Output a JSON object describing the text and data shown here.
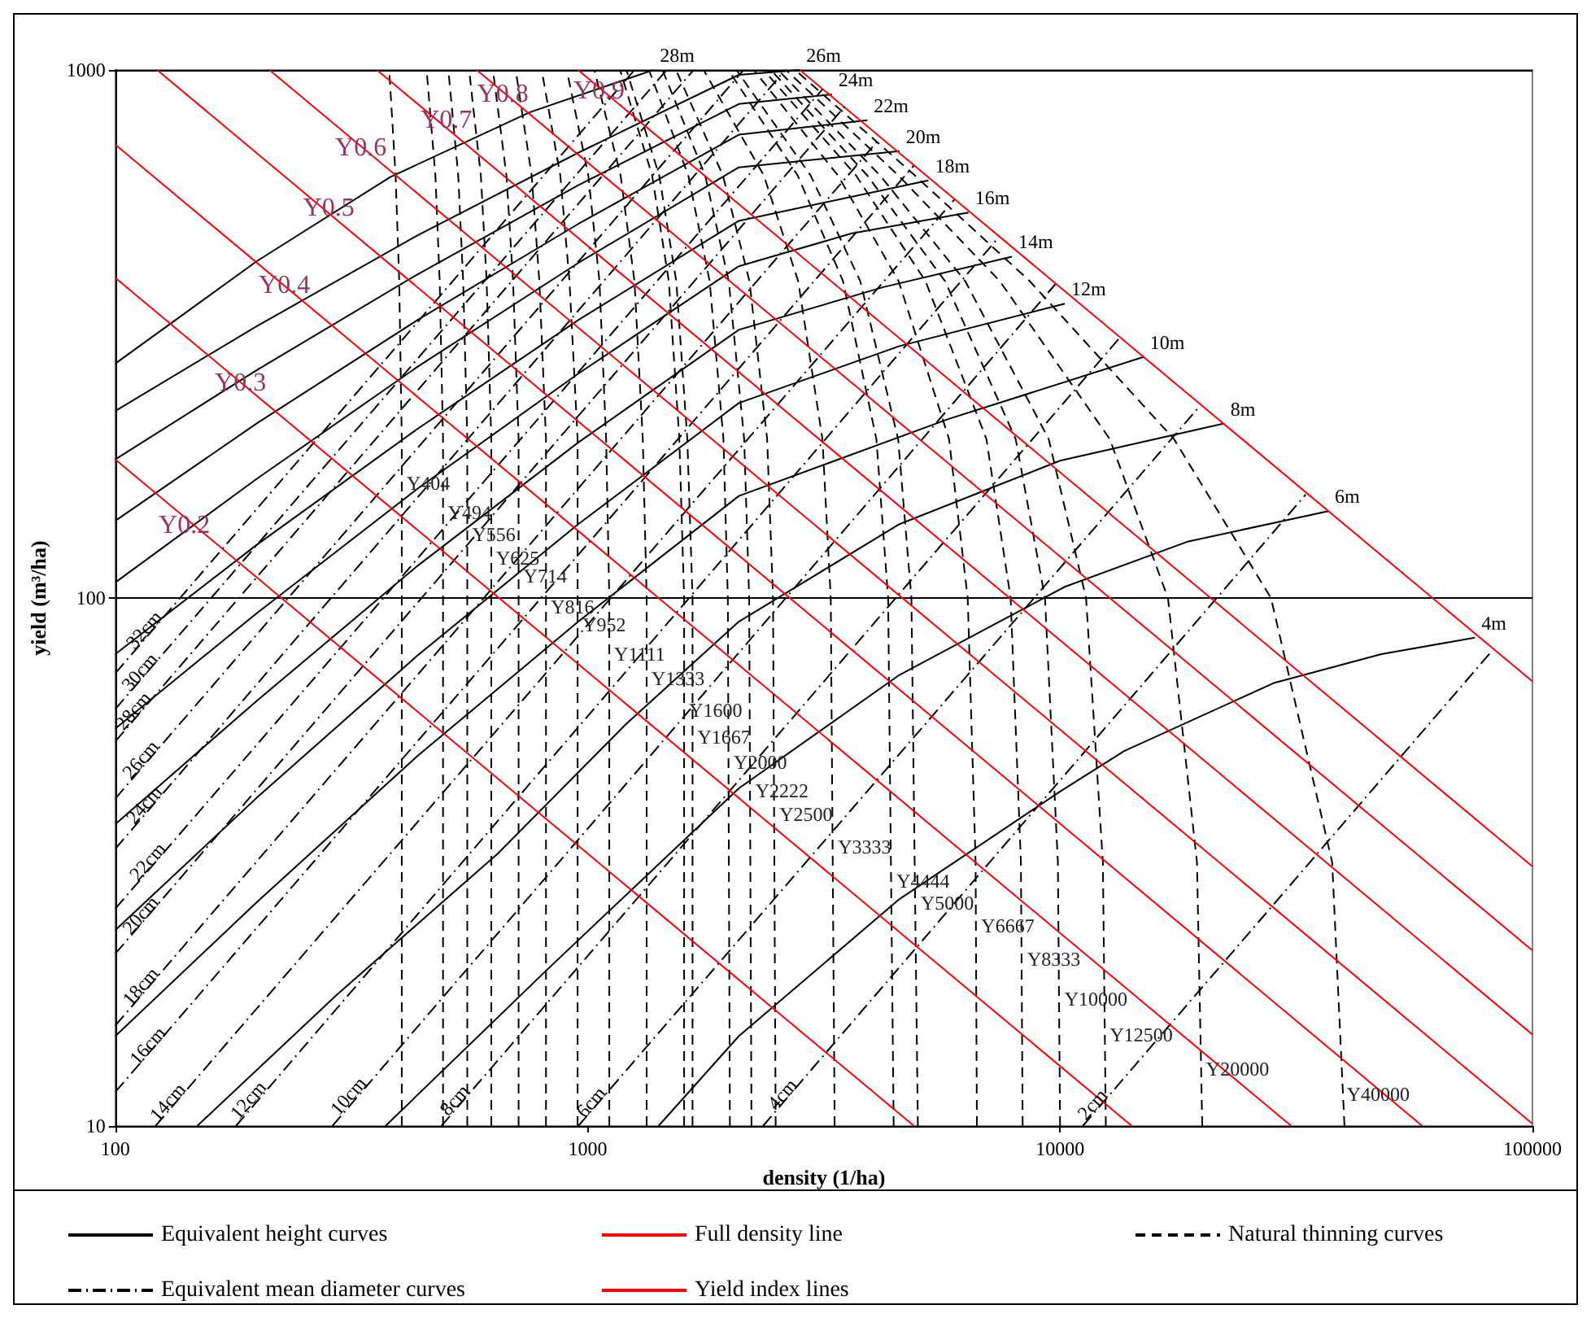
{
  "chart_data": {
    "type": "line",
    "xlabel": "density (1/ha)",
    "ylabel": "yield (m³/ha)",
    "log": "xy",
    "xlim": [
      100,
      100000
    ],
    "ylim": [
      10,
      1000
    ],
    "xticks": [
      100,
      1000,
      10000,
      100000
    ],
    "yticks": [
      10,
      100,
      1000
    ],
    "grid": "y",
    "legend": "bottom",
    "marker": "none",
    "series": [
      {
        "name": "Equivalent height curves",
        "color": "#000000",
        "line_style": "solid",
        "x": [
          100,
          199,
          382,
          755,
          1377
        ],
        "values": [
          278,
          434,
          627,
          832,
          1000
        ]
      },
      {
        "color": "#000000",
        "line_style": "solid",
        "x": [
          100,
          199,
          436,
          955,
          2089,
          2812
        ],
        "values": [
          226,
          327,
          486,
          697,
          979,
          1000
        ]
      },
      {
        "color": "#000000",
        "line_style": "solid",
        "x": [
          100,
          199,
          436,
          955,
          2089,
          3289
        ],
        "values": [
          183,
          270,
          410,
          605,
          862,
          899
        ]
      },
      {
        "color": "#000000",
        "line_style": "solid",
        "x": [
          100,
          199,
          436,
          955,
          2089,
          3908
        ],
        "values": [
          140,
          214,
          336,
          511,
          754,
          803
        ]
      },
      {
        "color": "#000000",
        "line_style": "solid",
        "x": [
          100,
          199,
          436,
          955,
          2089,
          4571
        ],
        "values": [
          107,
          168,
          274,
          431,
          654,
          702
        ]
      },
      {
        "color": "#000000",
        "line_style": "solid",
        "x": [
          100,
          199,
          436,
          955,
          2089,
          5264
        ],
        "values": [
          78.3,
          126,
          209,
          336,
          518,
          618
        ]
      },
      {
        "color": "#000000",
        "line_style": "solid",
        "x": [
          100,
          199,
          436,
          955,
          2089,
          3613,
          6400
        ],
        "values": [
          56.6,
          93.5,
          161,
          266,
          425,
          490,
          537
        ]
      },
      {
        "color": "#000000",
        "line_style": "solid",
        "x": [
          100,
          199,
          436,
          955,
          2089,
          4227,
          7909
        ],
        "values": [
          37.3,
          63.8,
          115,
          197,
          322,
          388,
          443
        ]
      },
      {
        "color": "#000000",
        "line_style": "solid",
        "x": [
          100,
          199,
          436,
          955,
          2089,
          4571,
          10234
        ],
        "values": [
          23.5,
          41.8,
          77.8,
          138,
          234,
          300,
          361
        ]
      },
      {
        "color": "#000000",
        "line_style": "solid",
        "x": [
          100,
          199,
          436,
          955,
          2089,
          5781,
          15020
        ],
        "values": [
          14.8,
          26.5,
          50.2,
          90.2,
          156,
          218,
          286
        ]
      },
      {
        "color": "#000000",
        "line_style": "solid",
        "x": [
          149,
          294,
          645,
          1208,
          2089,
          4571,
          10000,
          22240
        ],
        "values": [
          10,
          17.7,
          32.8,
          57.8,
          90.2,
          138,
          182,
          214
        ]
      },
      {
        "color": "#000000",
        "line_style": "solid",
        "x": [
          373,
          817,
          2089,
          4571,
          10234,
          18700,
          36980
        ],
        "values": [
          10,
          19.7,
          43.6,
          71.5,
          105,
          128,
          146
        ]
      },
      {
        "color": "#000000",
        "line_style": "solid",
        "x": [
          1412,
          2089,
          4571,
          10000,
          13670,
          28340,
          47900,
          75540
        ],
        "values": [
          10,
          14.8,
          26.9,
          43.0,
          51.3,
          69.0,
          78.3,
          84.1
        ]
      },
      {
        "name": "Full density line",
        "color": "#ff0000",
        "line_style": "solid",
        "x": [
          2812,
          100000
        ],
        "values": [
          1000,
          69.5
        ]
      },
      {
        "name": "Natural thinning curves",
        "color": "#000000",
        "line_style": "dashed",
        "x": [
          404,
          404,
          399,
          392,
          380
        ],
        "values": [
          10,
          200,
          398,
          631,
          1000
        ]
      },
      {
        "color": "#000000",
        "line_style": "dashed",
        "x": [
          494,
          494,
          486,
          476,
          456
        ],
        "values": [
          10,
          200,
          398,
          631,
          1000
        ]
      },
      {
        "color": "#000000",
        "line_style": "dashed",
        "x": [
          556,
          556,
          545,
          532,
          507
        ],
        "values": [
          10,
          200,
          398,
          631,
          1000
        ]
      },
      {
        "color": "#000000",
        "line_style": "dashed",
        "x": [
          625,
          625,
          611,
          594,
          561
        ],
        "values": [
          10,
          200,
          398,
          631,
          1000
        ]
      },
      {
        "color": "#000000",
        "line_style": "dashed",
        "x": [
          714,
          714,
          695,
          673,
          630
        ],
        "values": [
          10,
          200,
          398,
          631,
          1000
        ]
      },
      {
        "color": "#000000",
        "line_style": "dashed",
        "x": [
          816,
          816,
          790,
          761,
          704
        ],
        "values": [
          10,
          200,
          398,
          631,
          1000
        ]
      },
      {
        "color": "#000000",
        "line_style": "dashed",
        "x": [
          952,
          952,
          915,
          875,
          799
        ],
        "values": [
          10,
          200,
          398,
          631,
          1000
        ]
      },
      {
        "color": "#000000",
        "line_style": "dashed",
        "x": [
          1111,
          1111,
          1094,
          1059,
          1003,
          903
        ],
        "values": [
          10,
          100,
          200,
          398,
          631,
          1000
        ]
      },
      {
        "color": "#000000",
        "line_style": "dashed",
        "x": [
          1333,
          1333,
          1308,
          1256,
          1174,
          1033
        ],
        "values": [
          10,
          100,
          200,
          398,
          631,
          1000
        ]
      },
      {
        "color": "#000000",
        "line_style": "dashed",
        "x": [
          1600,
          1600,
          1563,
          1485,
          1369,
          1171
        ],
        "values": [
          10,
          100,
          200,
          398,
          631,
          1000
        ]
      },
      {
        "color": "#000000",
        "line_style": "dashed",
        "x": [
          1667,
          1667,
          1625,
          1540,
          1417,
          1208
        ],
        "values": [
          10,
          100,
          200,
          398,
          631,
          1000
        ]
      },
      {
        "color": "#000000",
        "line_style": "dashed",
        "x": [
          2000,
          1980,
          1938,
          1812,
          1633,
          1348
        ],
        "values": [
          10,
          100,
          200,
          398,
          631,
          1000
        ]
      },
      {
        "color": "#000000",
        "line_style": "dashed",
        "x": [
          2222,
          2197,
          2144,
          1989,
          1773,
          1440
        ],
        "values": [
          10,
          100,
          200,
          398,
          631,
          1000
        ]
      },
      {
        "color": "#000000",
        "line_style": "dashed",
        "x": [
          2500,
          2468,
          2398,
          2200,
          1933,
          1538
        ],
        "values": [
          10,
          100,
          200,
          398,
          631,
          1000
        ]
      },
      {
        "color": "#000000",
        "line_style": "dashed",
        "x": [
          3333,
          3270,
          3140,
          2790,
          2360,
          1760
        ],
        "values": [
          10,
          100,
          200,
          398,
          631,
          1000
        ]
      },
      {
        "color": "#000000",
        "line_style": "dashed",
        "x": [
          4444,
          4325,
          4084,
          3472,
          2784,
          1985
        ],
        "values": [
          10,
          100,
          200,
          398,
          631,
          1000
        ]
      },
      {
        "color": "#000000",
        "line_style": "dashed",
        "x": [
          5000,
          4845,
          4541,
          3776,
          2965,
          2065
        ],
        "values": [
          10,
          100,
          200,
          398,
          631,
          1000
        ]
      },
      {
        "color": "#000000",
        "line_style": "dashed",
        "x": [
          6667,
          6625,
          6375,
          5820,
          4553,
          3387,
          2247
        ],
        "values": [
          10,
          31.6,
          100,
          200,
          398,
          631,
          1000
        ]
      },
      {
        "color": "#000000",
        "line_style": "dashed",
        "x": [
          8333,
          8262,
          7858,
          6983,
          5191,
          3700,
          2358
        ],
        "values": [
          10,
          31.6,
          100,
          200,
          398,
          631,
          1000
        ]
      },
      {
        "color": "#000000",
        "line_style": "dashed",
        "x": [
          10000,
          9894,
          9290,
          8054,
          5709,
          3908,
          2443
        ],
        "values": [
          10,
          31.6,
          100,
          200,
          398,
          631,
          1000
        ]
      },
      {
        "color": "#000000",
        "line_style": "dashed",
        "x": [
          12500,
          12320,
          11350,
          9460,
          6300,
          4160,
          2530
        ],
        "values": [
          10,
          31.6,
          100,
          200,
          398,
          631,
          1000
        ]
      },
      {
        "color": "#000000",
        "line_style": "dashed",
        "x": [
          20000,
          19490,
          16920,
          12740,
          7460,
          4550,
          2630
        ],
        "values": [
          10,
          31.6,
          100,
          200,
          398,
          631,
          1000
        ]
      },
      {
        "color": "#000000",
        "line_style": "dashed",
        "x": [
          40000,
          37670,
          27960,
          17420,
          8630,
          4930,
          2750
        ],
        "values": [
          10,
          31.6,
          100,
          200,
          398,
          631,
          1000
        ]
      },
      {
        "name": "Equivalent mean diameter curves",
        "color": "#000000",
        "line_style": "dashdot",
        "x": [
          100,
          1256
        ],
        "values": [
          72.0,
          1000
        ]
      },
      {
        "color": "#000000",
        "line_style": "dashdot",
        "x": [
          100,
          1469
        ],
        "values": [
          61.6,
          1000
        ]
      },
      {
        "color": "#000000",
        "line_style": "dashdot",
        "x": [
          100,
          1675
        ],
        "values": [
          53.5,
          1000
        ]
      },
      {
        "color": "#000000",
        "line_style": "dashdot",
        "x": [
          100,
          2138
        ],
        "values": [
          41.7,
          1000
        ]
      },
      {
        "color": "#000000",
        "line_style": "dashdot",
        "x": [
          100,
          2620
        ],
        "values": [
          33.5,
          1000
        ]
      },
      {
        "color": "#000000",
        "line_style": "dashdot",
        "x": [
          100,
          3140
        ],
        "values": [
          25.8,
          919
        ]
      },
      {
        "color": "#000000",
        "line_style": "dashdot",
        "x": [
          100,
          3501
        ],
        "values": [
          21.2,
          853
        ]
      },
      {
        "color": "#000000",
        "line_style": "dashdot",
        "x": [
          100,
          4160
        ],
        "values": [
          15.5,
          743
        ]
      },
      {
        "color": "#000000",
        "line_style": "dashdot",
        "x": [
          100,
          4900
        ],
        "values": [
          11.6,
          659
        ]
      },
      {
        "color": "#000000",
        "line_style": "dashdot",
        "x": [
          121.6,
          5970
        ],
        "values": [
          10,
          568
        ]
      },
      {
        "color": "#000000",
        "line_style": "dashdot",
        "x": [
          180,
          7430
        ],
        "values": [
          10,
          483
        ]
      },
      {
        "color": "#000000",
        "line_style": "dashdot",
        "x": [
          288,
          9775
        ],
        "values": [
          10,
          393
        ]
      },
      {
        "color": "#000000",
        "line_style": "dashdot",
        "x": [
          490,
          13370
        ],
        "values": [
          10,
          311
        ]
      },
      {
        "color": "#000000",
        "line_style": "dashdot",
        "x": [
          955,
          19770
        ],
        "values": [
          10,
          231
        ]
      },
      {
        "color": "#000000",
        "line_style": "dashdot",
        "x": [
          2350,
          33110
        ],
        "values": [
          10,
          157
        ]
      },
      {
        "color": "#000000",
        "line_style": "dashdot",
        "x": [
          11170,
          82200
        ],
        "values": [
          10,
          79.5
        ]
      },
      {
        "name": "Yield index lines",
        "color": "#ff0000",
        "line_style": "solid",
        "x": [
          100,
          4909
        ],
        "values": [
          183,
          10
        ]
      },
      {
        "color": "#ff0000",
        "line_style": "solid",
        "x": [
          100,
          14190
        ],
        "values": [
          404,
          10
        ]
      },
      {
        "color": "#ff0000",
        "line_style": "solid",
        "x": [
          100,
          30870
        ],
        "values": [
          722,
          10
        ]
      },
      {
        "color": "#ff0000",
        "line_style": "solid",
        "x": [
          122.6,
          58480
        ],
        "values": [
          1000,
          10
        ]
      },
      {
        "color": "#ff0000",
        "line_style": "solid",
        "x": [
          212,
          100000
        ],
        "values": [
          1000,
          10.1
        ]
      },
      {
        "color": "#ff0000",
        "line_style": "solid",
        "x": [
          358,
          100000
        ],
        "values": [
          1000,
          14.9
        ]
      },
      {
        "color": "#ff0000",
        "line_style": "solid",
        "x": [
          582,
          100000
        ],
        "values": [
          1000,
          21.5
        ]
      },
      {
        "color": "#ff0000",
        "line_style": "solid",
        "x": [
          954,
          100000
        ],
        "values": [
          1000,
          31.0
        ]
      }
    ],
    "annotations": [
      {
        "text": "28m",
        "x": 1377,
        "y": 1000
      },
      {
        "text": "26m",
        "x": 2812,
        "y": 1000
      },
      {
        "text": "24m",
        "x": 3289,
        "y": 899
      },
      {
        "text": "22m",
        "x": 3908,
        "y": 803
      },
      {
        "text": "20m",
        "x": 4571,
        "y": 702
      },
      {
        "text": "18m",
        "x": 5264,
        "y": 618
      },
      {
        "text": "16m",
        "x": 6400,
        "y": 537
      },
      {
        "text": "14m",
        "x": 7909,
        "y": 443
      },
      {
        "text": "12m",
        "x": 10234,
        "y": 361
      },
      {
        "text": "10m",
        "x": 15020,
        "y": 286
      },
      {
        "text": "8m",
        "x": 22240,
        "y": 214
      },
      {
        "text": "6m",
        "x": 36980,
        "y": 146
      },
      {
        "text": "4m",
        "x": 75540,
        "y": 84.1
      },
      {
        "text": "32cm",
        "x": 115,
        "y": 87.1
      },
      {
        "text": "30cm",
        "x": 112.5,
        "y": 72.5
      },
      {
        "text": "28cm",
        "x": 109,
        "y": 61.2
      },
      {
        "text": "26cm",
        "x": 113,
        "y": 49.5
      },
      {
        "text": "24cm",
        "x": 115,
        "y": 40.6
      },
      {
        "text": "22cm",
        "x": 117,
        "y": 31.7
      },
      {
        "text": "20cm",
        "x": 113,
        "y": 25.1
      },
      {
        "text": "18cm",
        "x": 113,
        "y": 18.4
      },
      {
        "text": "16cm",
        "x": 117,
        "y": 14.2
      },
      {
        "text": "14cm",
        "x": 129,
        "y": 11.1
      },
      {
        "text": "12cm",
        "x": 191,
        "y": 11.2
      },
      {
        "text": "10cm",
        "x": 311,
        "y": 11.4
      },
      {
        "text": "8cm",
        "x": 522,
        "y": 11.2
      },
      {
        "text": "6cm",
        "x": 1016,
        "y": 11.1
      },
      {
        "text": "4cm",
        "x": 2580,
        "y": 11.5
      },
      {
        "text": "2cm",
        "x": 11700,
        "y": 11.0
      },
      {
        "text": "Y0.2",
        "x": 140,
        "y": 137
      },
      {
        "text": "Y0.3",
        "x": 184,
        "y": 255
      },
      {
        "text": "Y0.4",
        "x": 228,
        "y": 390
      },
      {
        "text": "Y0.5",
        "x": 283,
        "y": 548
      },
      {
        "text": "Y0.6",
        "x": 331,
        "y": 712
      },
      {
        "text": "Y0.7",
        "x": 502,
        "y": 803
      },
      {
        "text": "Y0.8",
        "x": 661,
        "y": 900
      },
      {
        "text": "Y0.9",
        "x": 1057,
        "y": 912
      },
      {
        "text": "Y404",
        "x": 404,
        "y": 165
      },
      {
        "text": "Y494",
        "x": 494,
        "y": 145
      },
      {
        "text": "Y556",
        "x": 556,
        "y": 132
      },
      {
        "text": "Y625",
        "x": 625,
        "y": 119
      },
      {
        "text": "Y714",
        "x": 714,
        "y": 110
      },
      {
        "text": "Y816",
        "x": 816,
        "y": 96.2
      },
      {
        "text": "Y952",
        "x": 952,
        "y": 89.0
      },
      {
        "text": "Y1111",
        "x": 1111,
        "y": 78.3
      },
      {
        "text": "Y1333",
        "x": 1333,
        "y": 70.5
      },
      {
        "text": "Y1600",
        "x": 1600,
        "y": 61.2
      },
      {
        "text": "Y1667",
        "x": 1667,
        "y": 54.6
      },
      {
        "text": "Y2000",
        "x": 1990,
        "y": 48.8
      },
      {
        "text": "Y2222",
        "x": 2212,
        "y": 43.2
      },
      {
        "text": "Y2500",
        "x": 2486,
        "y": 38.9
      },
      {
        "text": "Y3333",
        "x": 3308,
        "y": 33.8
      },
      {
        "text": "Y4444",
        "x": 4400,
        "y": 29.1
      },
      {
        "text": "Y5000",
        "x": 4950,
        "y": 26.4
      },
      {
        "text": "Y6667",
        "x": 6650,
        "y": 23.9
      },
      {
        "text": "Y8333",
        "x": 8320,
        "y": 20.7
      },
      {
        "text": "Y10000",
        "x": 9980,
        "y": 17.4
      },
      {
        "text": "Y12500",
        "x": 12450,
        "y": 14.9
      },
      {
        "text": "Y20000",
        "x": 19900,
        "y": 12.8
      },
      {
        "text": "Y40000",
        "x": 39500,
        "y": 11.5
      }
    ]
  }
}
